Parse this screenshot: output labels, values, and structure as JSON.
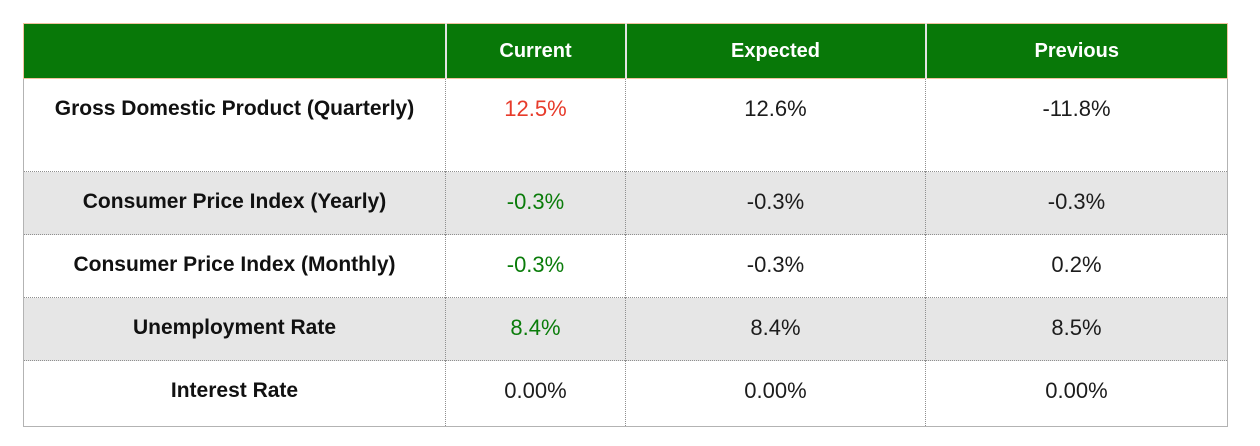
{
  "colors": {
    "header_bg": "#087808",
    "header_text": "#ffffff",
    "header_outline": "#f2c29e",
    "row_alt_bg": "#e6e6e6",
    "outer_border": "#b3b3b3",
    "inner_dotted_border": "#8f8f8f",
    "value_red": "#e73b2b",
    "value_green": "#0a7c0a",
    "value_black": "#1c1c1c"
  },
  "chart_data": {
    "type": "table",
    "columns": [
      "",
      "Current",
      "Expected",
      "Previous"
    ],
    "rows": [
      {
        "label": "Gross Domestic Product (Quarterly)",
        "current": "12.5%",
        "current_color": "red",
        "expected": "12.6%",
        "expected_color": "black",
        "previous": "-11.8%",
        "previous_color": "black"
      },
      {
        "label": "Consumer Price Index (Yearly)",
        "current": "-0.3%",
        "current_color": "green",
        "expected": "-0.3%",
        "expected_color": "black",
        "previous": "-0.3%",
        "previous_color": "black"
      },
      {
        "label": "Consumer Price Index (Monthly)",
        "current": "-0.3%",
        "current_color": "green",
        "expected": "-0.3%",
        "expected_color": "black",
        "previous": "0.2%",
        "previous_color": "black"
      },
      {
        "label": "Unemployment Rate",
        "current": "8.4%",
        "current_color": "green",
        "expected": "8.4%",
        "expected_color": "black",
        "previous": "8.5%",
        "previous_color": "black"
      },
      {
        "label": "Interest Rate",
        "current": "0.00%",
        "current_color": "black",
        "expected": "0.00%",
        "expected_color": "black",
        "previous": "0.00%",
        "previous_color": "black"
      }
    ]
  }
}
